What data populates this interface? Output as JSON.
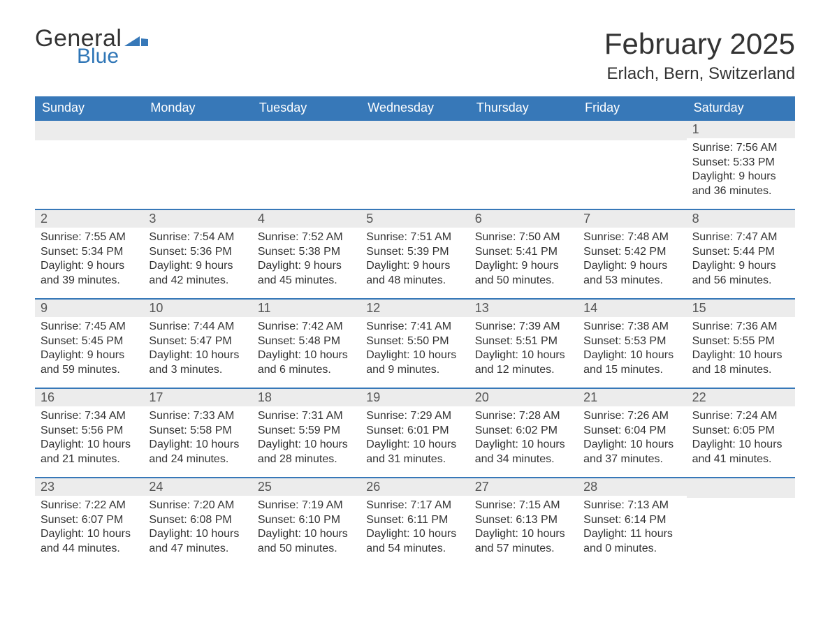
{
  "logo": {
    "text_top": "General",
    "text_bottom": "Blue",
    "text_color": "#333333",
    "blue_color": "#2e75b6",
    "flag_color": "#3778b8"
  },
  "title": {
    "month_year": "February 2025",
    "location": "Erlach, Bern, Switzerland",
    "title_fontsize": 42,
    "location_fontsize": 24
  },
  "colors": {
    "header_bg": "#3778b8",
    "header_text": "#ffffff",
    "daynum_bg": "#ececec",
    "row_border": "#3778b8",
    "body_text": "#333333",
    "background": "#ffffff"
  },
  "day_headers": [
    "Sunday",
    "Monday",
    "Tuesday",
    "Wednesday",
    "Thursday",
    "Friday",
    "Saturday"
  ],
  "weeks": [
    [
      {
        "blank": true
      },
      {
        "blank": true
      },
      {
        "blank": true
      },
      {
        "blank": true
      },
      {
        "blank": true
      },
      {
        "blank": true
      },
      {
        "day": "1",
        "sunrise": "Sunrise: 7:56 AM",
        "sunset": "Sunset: 5:33 PM",
        "daylight": "Daylight: 9 hours and 36 minutes."
      }
    ],
    [
      {
        "day": "2",
        "sunrise": "Sunrise: 7:55 AM",
        "sunset": "Sunset: 5:34 PM",
        "daylight": "Daylight: 9 hours and 39 minutes."
      },
      {
        "day": "3",
        "sunrise": "Sunrise: 7:54 AM",
        "sunset": "Sunset: 5:36 PM",
        "daylight": "Daylight: 9 hours and 42 minutes."
      },
      {
        "day": "4",
        "sunrise": "Sunrise: 7:52 AM",
        "sunset": "Sunset: 5:38 PM",
        "daylight": "Daylight: 9 hours and 45 minutes."
      },
      {
        "day": "5",
        "sunrise": "Sunrise: 7:51 AM",
        "sunset": "Sunset: 5:39 PM",
        "daylight": "Daylight: 9 hours and 48 minutes."
      },
      {
        "day": "6",
        "sunrise": "Sunrise: 7:50 AM",
        "sunset": "Sunset: 5:41 PM",
        "daylight": "Daylight: 9 hours and 50 minutes."
      },
      {
        "day": "7",
        "sunrise": "Sunrise: 7:48 AM",
        "sunset": "Sunset: 5:42 PM",
        "daylight": "Daylight: 9 hours and 53 minutes."
      },
      {
        "day": "8",
        "sunrise": "Sunrise: 7:47 AM",
        "sunset": "Sunset: 5:44 PM",
        "daylight": "Daylight: 9 hours and 56 minutes."
      }
    ],
    [
      {
        "day": "9",
        "sunrise": "Sunrise: 7:45 AM",
        "sunset": "Sunset: 5:45 PM",
        "daylight": "Daylight: 9 hours and 59 minutes."
      },
      {
        "day": "10",
        "sunrise": "Sunrise: 7:44 AM",
        "sunset": "Sunset: 5:47 PM",
        "daylight": "Daylight: 10 hours and 3 minutes."
      },
      {
        "day": "11",
        "sunrise": "Sunrise: 7:42 AM",
        "sunset": "Sunset: 5:48 PM",
        "daylight": "Daylight: 10 hours and 6 minutes."
      },
      {
        "day": "12",
        "sunrise": "Sunrise: 7:41 AM",
        "sunset": "Sunset: 5:50 PM",
        "daylight": "Daylight: 10 hours and 9 minutes."
      },
      {
        "day": "13",
        "sunrise": "Sunrise: 7:39 AM",
        "sunset": "Sunset: 5:51 PM",
        "daylight": "Daylight: 10 hours and 12 minutes."
      },
      {
        "day": "14",
        "sunrise": "Sunrise: 7:38 AM",
        "sunset": "Sunset: 5:53 PM",
        "daylight": "Daylight: 10 hours and 15 minutes."
      },
      {
        "day": "15",
        "sunrise": "Sunrise: 7:36 AM",
        "sunset": "Sunset: 5:55 PM",
        "daylight": "Daylight: 10 hours and 18 minutes."
      }
    ],
    [
      {
        "day": "16",
        "sunrise": "Sunrise: 7:34 AM",
        "sunset": "Sunset: 5:56 PM",
        "daylight": "Daylight: 10 hours and 21 minutes."
      },
      {
        "day": "17",
        "sunrise": "Sunrise: 7:33 AM",
        "sunset": "Sunset: 5:58 PM",
        "daylight": "Daylight: 10 hours and 24 minutes."
      },
      {
        "day": "18",
        "sunrise": "Sunrise: 7:31 AM",
        "sunset": "Sunset: 5:59 PM",
        "daylight": "Daylight: 10 hours and 28 minutes."
      },
      {
        "day": "19",
        "sunrise": "Sunrise: 7:29 AM",
        "sunset": "Sunset: 6:01 PM",
        "daylight": "Daylight: 10 hours and 31 minutes."
      },
      {
        "day": "20",
        "sunrise": "Sunrise: 7:28 AM",
        "sunset": "Sunset: 6:02 PM",
        "daylight": "Daylight: 10 hours and 34 minutes."
      },
      {
        "day": "21",
        "sunrise": "Sunrise: 7:26 AM",
        "sunset": "Sunset: 6:04 PM",
        "daylight": "Daylight: 10 hours and 37 minutes."
      },
      {
        "day": "22",
        "sunrise": "Sunrise: 7:24 AM",
        "sunset": "Sunset: 6:05 PM",
        "daylight": "Daylight: 10 hours and 41 minutes."
      }
    ],
    [
      {
        "day": "23",
        "sunrise": "Sunrise: 7:22 AM",
        "sunset": "Sunset: 6:07 PM",
        "daylight": "Daylight: 10 hours and 44 minutes."
      },
      {
        "day": "24",
        "sunrise": "Sunrise: 7:20 AM",
        "sunset": "Sunset: 6:08 PM",
        "daylight": "Daylight: 10 hours and 47 minutes."
      },
      {
        "day": "25",
        "sunrise": "Sunrise: 7:19 AM",
        "sunset": "Sunset: 6:10 PM",
        "daylight": "Daylight: 10 hours and 50 minutes."
      },
      {
        "day": "26",
        "sunrise": "Sunrise: 7:17 AM",
        "sunset": "Sunset: 6:11 PM",
        "daylight": "Daylight: 10 hours and 54 minutes."
      },
      {
        "day": "27",
        "sunrise": "Sunrise: 7:15 AM",
        "sunset": "Sunset: 6:13 PM",
        "daylight": "Daylight: 10 hours and 57 minutes."
      },
      {
        "day": "28",
        "sunrise": "Sunrise: 7:13 AM",
        "sunset": "Sunset: 6:14 PM",
        "daylight": "Daylight: 11 hours and 0 minutes."
      },
      {
        "blank": true
      }
    ]
  ]
}
